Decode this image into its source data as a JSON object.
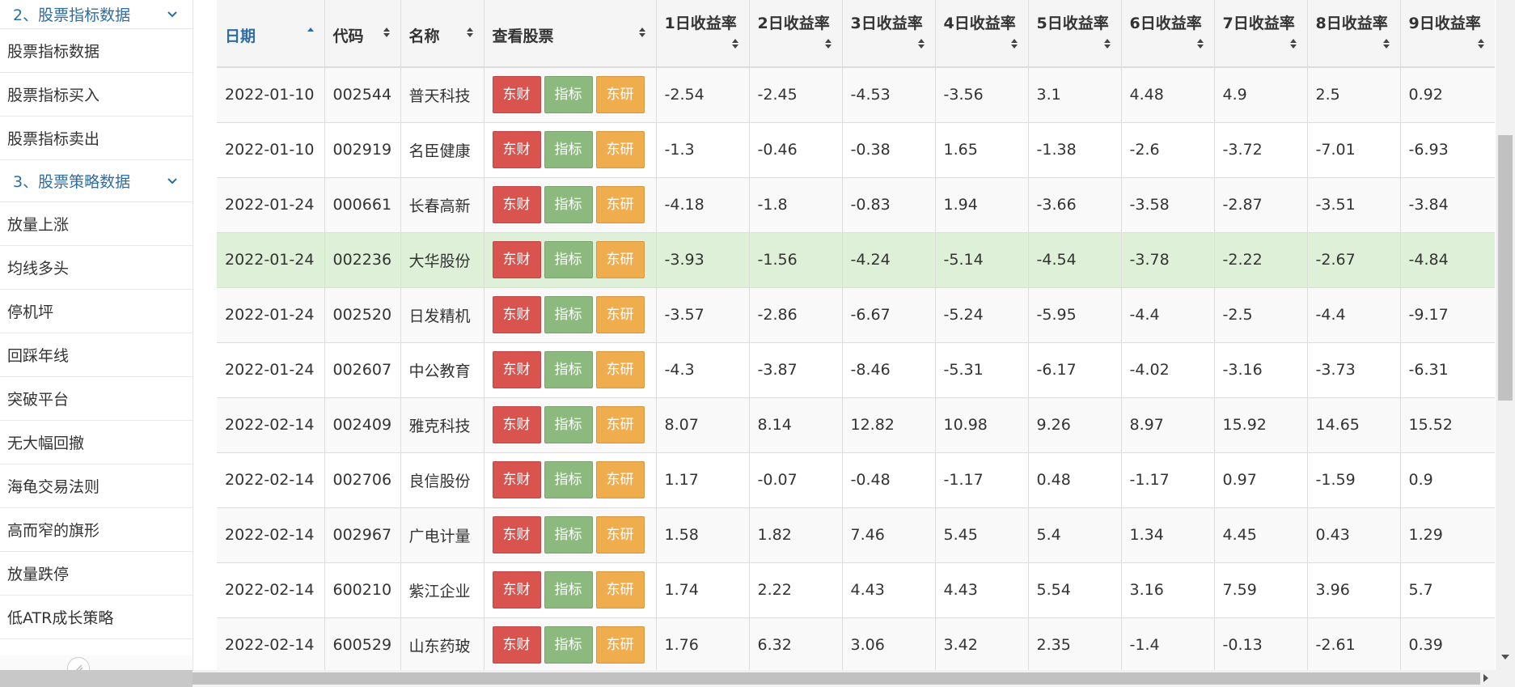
{
  "sidebar": {
    "group2_label": "2、股票指标数据",
    "group2_items": [
      "股票指标数据",
      "股票指标买入",
      "股票指标卖出"
    ],
    "group3_label": "3、股票策略数据",
    "group3_items": [
      "放量上涨",
      "均线多头",
      "停机坪",
      "回踩年线",
      "突破平台",
      "无大幅回撤",
      "海龟交易法则",
      "高而窄的旗形",
      "放量跌停",
      "低ATR成长策略"
    ]
  },
  "table": {
    "headers": {
      "date": "日期",
      "code": "代码",
      "name": "名称",
      "view": "查看股票",
      "r1": "1日收益率",
      "r2": "2日收益率",
      "r3": "3日收益率",
      "r4": "4日收益率",
      "r5": "5日收益率",
      "r6": "6日收益率",
      "r7": "7日收益率",
      "r8": "8日收益率",
      "r9": "9日收益率"
    },
    "buttons": {
      "dongcai": "东财",
      "zhibiao": "指标",
      "dongyan": "东研"
    },
    "rows": [
      {
        "date": "2022-01-10",
        "code": "002544",
        "name": "普天科技",
        "r": [
          "-2.54",
          "-2.45",
          "-4.53",
          "-3.56",
          "3.1",
          "4.48",
          "4.9",
          "2.5",
          "0.92"
        ]
      },
      {
        "date": "2022-01-10",
        "code": "002919",
        "name": "名臣健康",
        "r": [
          "-1.3",
          "-0.46",
          "-0.38",
          "1.65",
          "-1.38",
          "-2.6",
          "-3.72",
          "-7.01",
          "-6.93"
        ]
      },
      {
        "date": "2022-01-24",
        "code": "000661",
        "name": "长春高新",
        "r": [
          "-4.18",
          "-1.8",
          "-0.83",
          "1.94",
          "-3.66",
          "-3.58",
          "-2.87",
          "-3.51",
          "-3.84"
        ]
      },
      {
        "date": "2022-01-24",
        "code": "002236",
        "name": "大华股份",
        "r": [
          "-3.93",
          "-1.56",
          "-4.24",
          "-5.14",
          "-4.54",
          "-3.78",
          "-2.22",
          "-2.67",
          "-4.84"
        ]
      },
      {
        "date": "2022-01-24",
        "code": "002520",
        "name": "日发精机",
        "r": [
          "-3.57",
          "-2.86",
          "-6.67",
          "-5.24",
          "-5.95",
          "-4.4",
          "-2.5",
          "-4.4",
          "-9.17"
        ]
      },
      {
        "date": "2022-01-24",
        "code": "002607",
        "name": "中公教育",
        "r": [
          "-4.3",
          "-3.87",
          "-8.46",
          "-5.31",
          "-6.17",
          "-4.02",
          "-3.16",
          "-3.73",
          "-6.31"
        ]
      },
      {
        "date": "2022-02-14",
        "code": "002409",
        "name": "雅克科技",
        "r": [
          "8.07",
          "8.14",
          "12.82",
          "10.98",
          "9.26",
          "8.97",
          "15.92",
          "14.65",
          "15.52"
        ]
      },
      {
        "date": "2022-02-14",
        "code": "002706",
        "name": "良信股份",
        "r": [
          "1.17",
          "-0.07",
          "-0.48",
          "-1.17",
          "0.48",
          "-1.17",
          "0.97",
          "-1.59",
          "0.9"
        ]
      },
      {
        "date": "2022-02-14",
        "code": "002967",
        "name": "广电计量",
        "r": [
          "1.58",
          "1.82",
          "7.46",
          "5.45",
          "5.4",
          "1.34",
          "4.45",
          "0.43",
          "1.29"
        ]
      },
      {
        "date": "2022-02-14",
        "code": "600210",
        "name": "紫江企业",
        "r": [
          "1.74",
          "2.22",
          "4.43",
          "4.43",
          "5.54",
          "3.16",
          "7.59",
          "3.96",
          "5.7"
        ]
      },
      {
        "date": "2022-02-14",
        "code": "600529",
        "name": "山东药玻",
        "r": [
          "1.76",
          "6.32",
          "3.06",
          "3.42",
          "2.35",
          "-1.4",
          "-0.13",
          "-2.61",
          "0.39"
        ]
      }
    ]
  },
  "colors": {
    "accent": "#2e6da4",
    "selected_row": "#dff0d8",
    "btn_red": "#d9534f",
    "btn_green": "#8cba7e",
    "btn_orange": "#f0ad4e"
  }
}
